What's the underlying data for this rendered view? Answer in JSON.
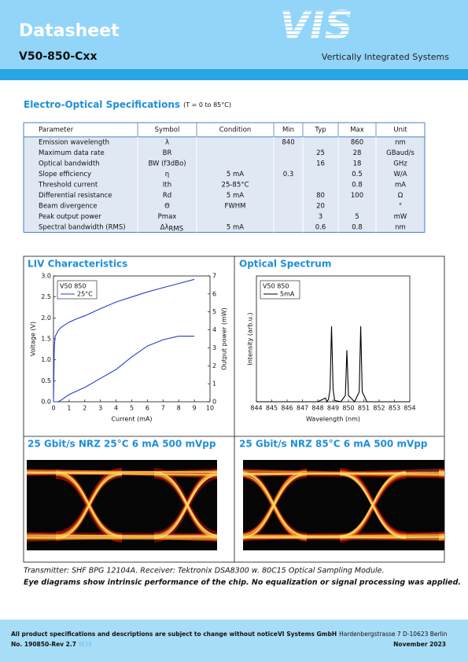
{
  "header": {
    "title": "Datasheet",
    "product": "V50-850-Cxx",
    "logo": "VIS",
    "company": "Vertically Integrated Systems"
  },
  "specs": {
    "title": "Electro-Optical Specifications",
    "condition": "(T = 0 to 85°C)",
    "columns": [
      "Parameter",
      "Symbol",
      "Condition",
      "Min",
      "Typ",
      "Max",
      "Unit"
    ],
    "rows": [
      [
        "Emission wavelength",
        "λ",
        null,
        840,
        null,
        860,
        "nm"
      ],
      [
        "Maximum data rate",
        "BR",
        null,
        null,
        25,
        28,
        "GBaud/s"
      ],
      [
        "Optical bandwidth",
        "BW (f3dBo)",
        null,
        null,
        16,
        18,
        "GHz"
      ],
      [
        "Slope efficiency",
        "η",
        "5 mA",
        0.3,
        null,
        0.5,
        "W/A"
      ],
      [
        "Threshold current",
        "Ith",
        "25-85°C",
        null,
        null,
        0.8,
        "mA"
      ],
      [
        "Differential resistance",
        "Rd",
        "5 mA",
        null,
        80,
        100,
        "Ω"
      ],
      [
        "Beam divergence",
        "Θ",
        "FWHM",
        null,
        20,
        null,
        "°"
      ],
      [
        "Peak output power",
        "Pmax",
        null,
        null,
        3,
        5,
        "mW"
      ],
      [
        "Spectral bandwidth (RMS)",
        {
          "text": "Δλ",
          "sub": "RMS"
        },
        "5 mA",
        null,
        0.6,
        0.8,
        "nm"
      ]
    ]
  },
  "charts": {
    "liv": {
      "type": "line",
      "title": "LIV Characteristics",
      "xlabel": "Current (mA)",
      "ylabel": "Voltage (V)",
      "y2label": "Output power (mW)",
      "legend_title": "V50 850",
      "x": [
        0,
        0.05,
        0.1,
        0.3,
        0.5,
        1,
        1.5,
        2,
        3,
        4,
        5,
        6,
        7,
        8,
        9
      ],
      "series": [
        {
          "name": "25°C",
          "color": "#1f3fd1",
          "axis": "y",
          "values": [
            0,
            1.3,
            1.55,
            1.7,
            1.78,
            1.9,
            1.98,
            2.05,
            2.22,
            2.38,
            2.5,
            2.62,
            2.72,
            2.82,
            2.92
          ]
        },
        {
          "color": "#1f3fd1",
          "axis": "y2",
          "values": [
            0,
            0,
            0,
            0,
            0.1,
            0.4,
            0.6,
            0.8,
            1.3,
            1.8,
            2.5,
            3.1,
            3.45,
            3.65,
            3.65
          ]
        }
      ],
      "xlim": [
        0,
        10
      ],
      "xticks": [
        0,
        1,
        2,
        3,
        4,
        5,
        6,
        7,
        8,
        9,
        10
      ],
      "ylim": [
        0,
        3
      ],
      "yticks": [
        {
          "value": 0,
          "label": "0.0"
        },
        0.5,
        {
          "value": 1,
          "label": "1.0"
        },
        1.5,
        {
          "value": 2,
          "label": "2.0"
        },
        2.5,
        {
          "value": 3,
          "label": "3.0"
        }
      ],
      "y2lim": [
        0,
        7
      ],
      "y2ticks": [
        0,
        1,
        2,
        3,
        4,
        5,
        6,
        7
      ]
    },
    "spectrum": {
      "type": "line",
      "title": "Optical Spectrum",
      "xlabel": "Wavelength (nm)",
      "ylabel": "Intensity (arb.u.)",
      "legend_title": "V50 850",
      "x": [
        844,
        848,
        848.5,
        848.6,
        848.7,
        848.8,
        848.9,
        849,
        849.1,
        849.5,
        849.8,
        849.9,
        850,
        850.4,
        850.7,
        850.8,
        850.9,
        851.2,
        854
      ],
      "series": [
        {
          "name": "5mA",
          "color": "#000000",
          "values": [
            0,
            0,
            0.03,
            0,
            0.02,
            0.1,
            0.6,
            0.1,
            0.01,
            0,
            0.05,
            0.41,
            0.05,
            0,
            0.08,
            0.6,
            0.08,
            0,
            0
          ]
        }
      ],
      "xlim": [
        844,
        854
      ],
      "xticks": [
        844,
        845,
        846,
        847,
        848,
        849,
        850,
        851,
        852,
        853,
        854
      ],
      "ylim": [
        0,
        1
      ]
    }
  },
  "eyes": {
    "left": {
      "title": "25 Gbit/s NRZ 25°C  6 mA  500 mVpp"
    },
    "right": {
      "title": "25 Gbit/s NRZ 85°C  6 mA  500 mVpp"
    }
  },
  "captions": {
    "setup": "Transmitter: SHF BPG 12104A. Receiver: Tektronix DSA8300 w. 80C15 Optical Sampling Module.",
    "note": "Eye diagrams show intrinsic performance of the chip. No equalization or signal processing was applied."
  },
  "footer": {
    "disclaimer": "All product specifications and descriptions are subject to change without notice",
    "document": "No. 190850-Rev 2.7",
    "week": "W39",
    "company": "VI Systems GmbH",
    "address": "Hardenbergstrasse 7 D-10623 Berlin",
    "date": "November 2023"
  }
}
